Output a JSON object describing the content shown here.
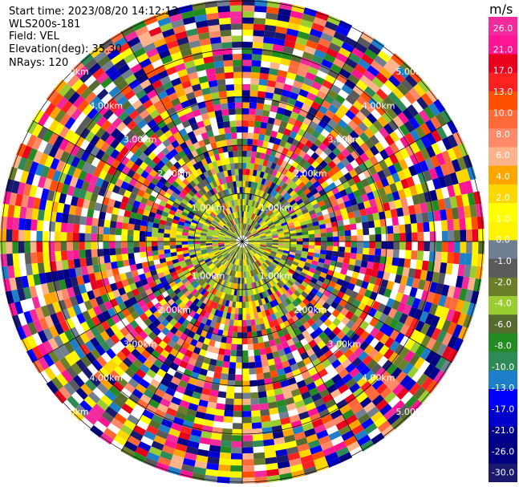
{
  "header": {
    "start_time": "Start time: 2023/08/20 14:12:12",
    "site": "WLS200s-181",
    "field": "Field: VEL",
    "elevation": "Elevation(deg): 35.30",
    "nrays": "NRays: 120"
  },
  "ppi": {
    "range_ring_labels": [
      "1.00km",
      "2.00km",
      "3.00km",
      "4.00km",
      "5.00km"
    ],
    "n_rays": 120
  },
  "colorbar": {
    "unit": "m/s",
    "colors": [
      "#f22a9b",
      "#ff1493",
      "#e8001c",
      "#ff2020",
      "#ff4f00",
      "#ff6a3b",
      "#ff8a6a",
      "#ffb38a",
      "#ffa500",
      "#ffd700",
      "#ffff00",
      "#fff400",
      "#708090",
      "#5a5a5a",
      "#6b7f2a",
      "#9acd32",
      "#556b2f",
      "#228b22",
      "#2e8b57",
      "#1e7fc8",
      "#0000ff",
      "#0000cd",
      "#00008b",
      "#000080",
      "#191970"
    ],
    "labels": [
      "26.0",
      "21.0",
      "17.0",
      "13.0",
      "10.0",
      "8.0",
      "6.0",
      "4.0",
      "2.0",
      "1.0",
      "0.0",
      "-1.0",
      "-2.0",
      "-4.0",
      "-6.0",
      "-8.0",
      "-10.0",
      "-13.0",
      "-17.0",
      "-21.0",
      "-26.0",
      "-30.0"
    ]
  }
}
